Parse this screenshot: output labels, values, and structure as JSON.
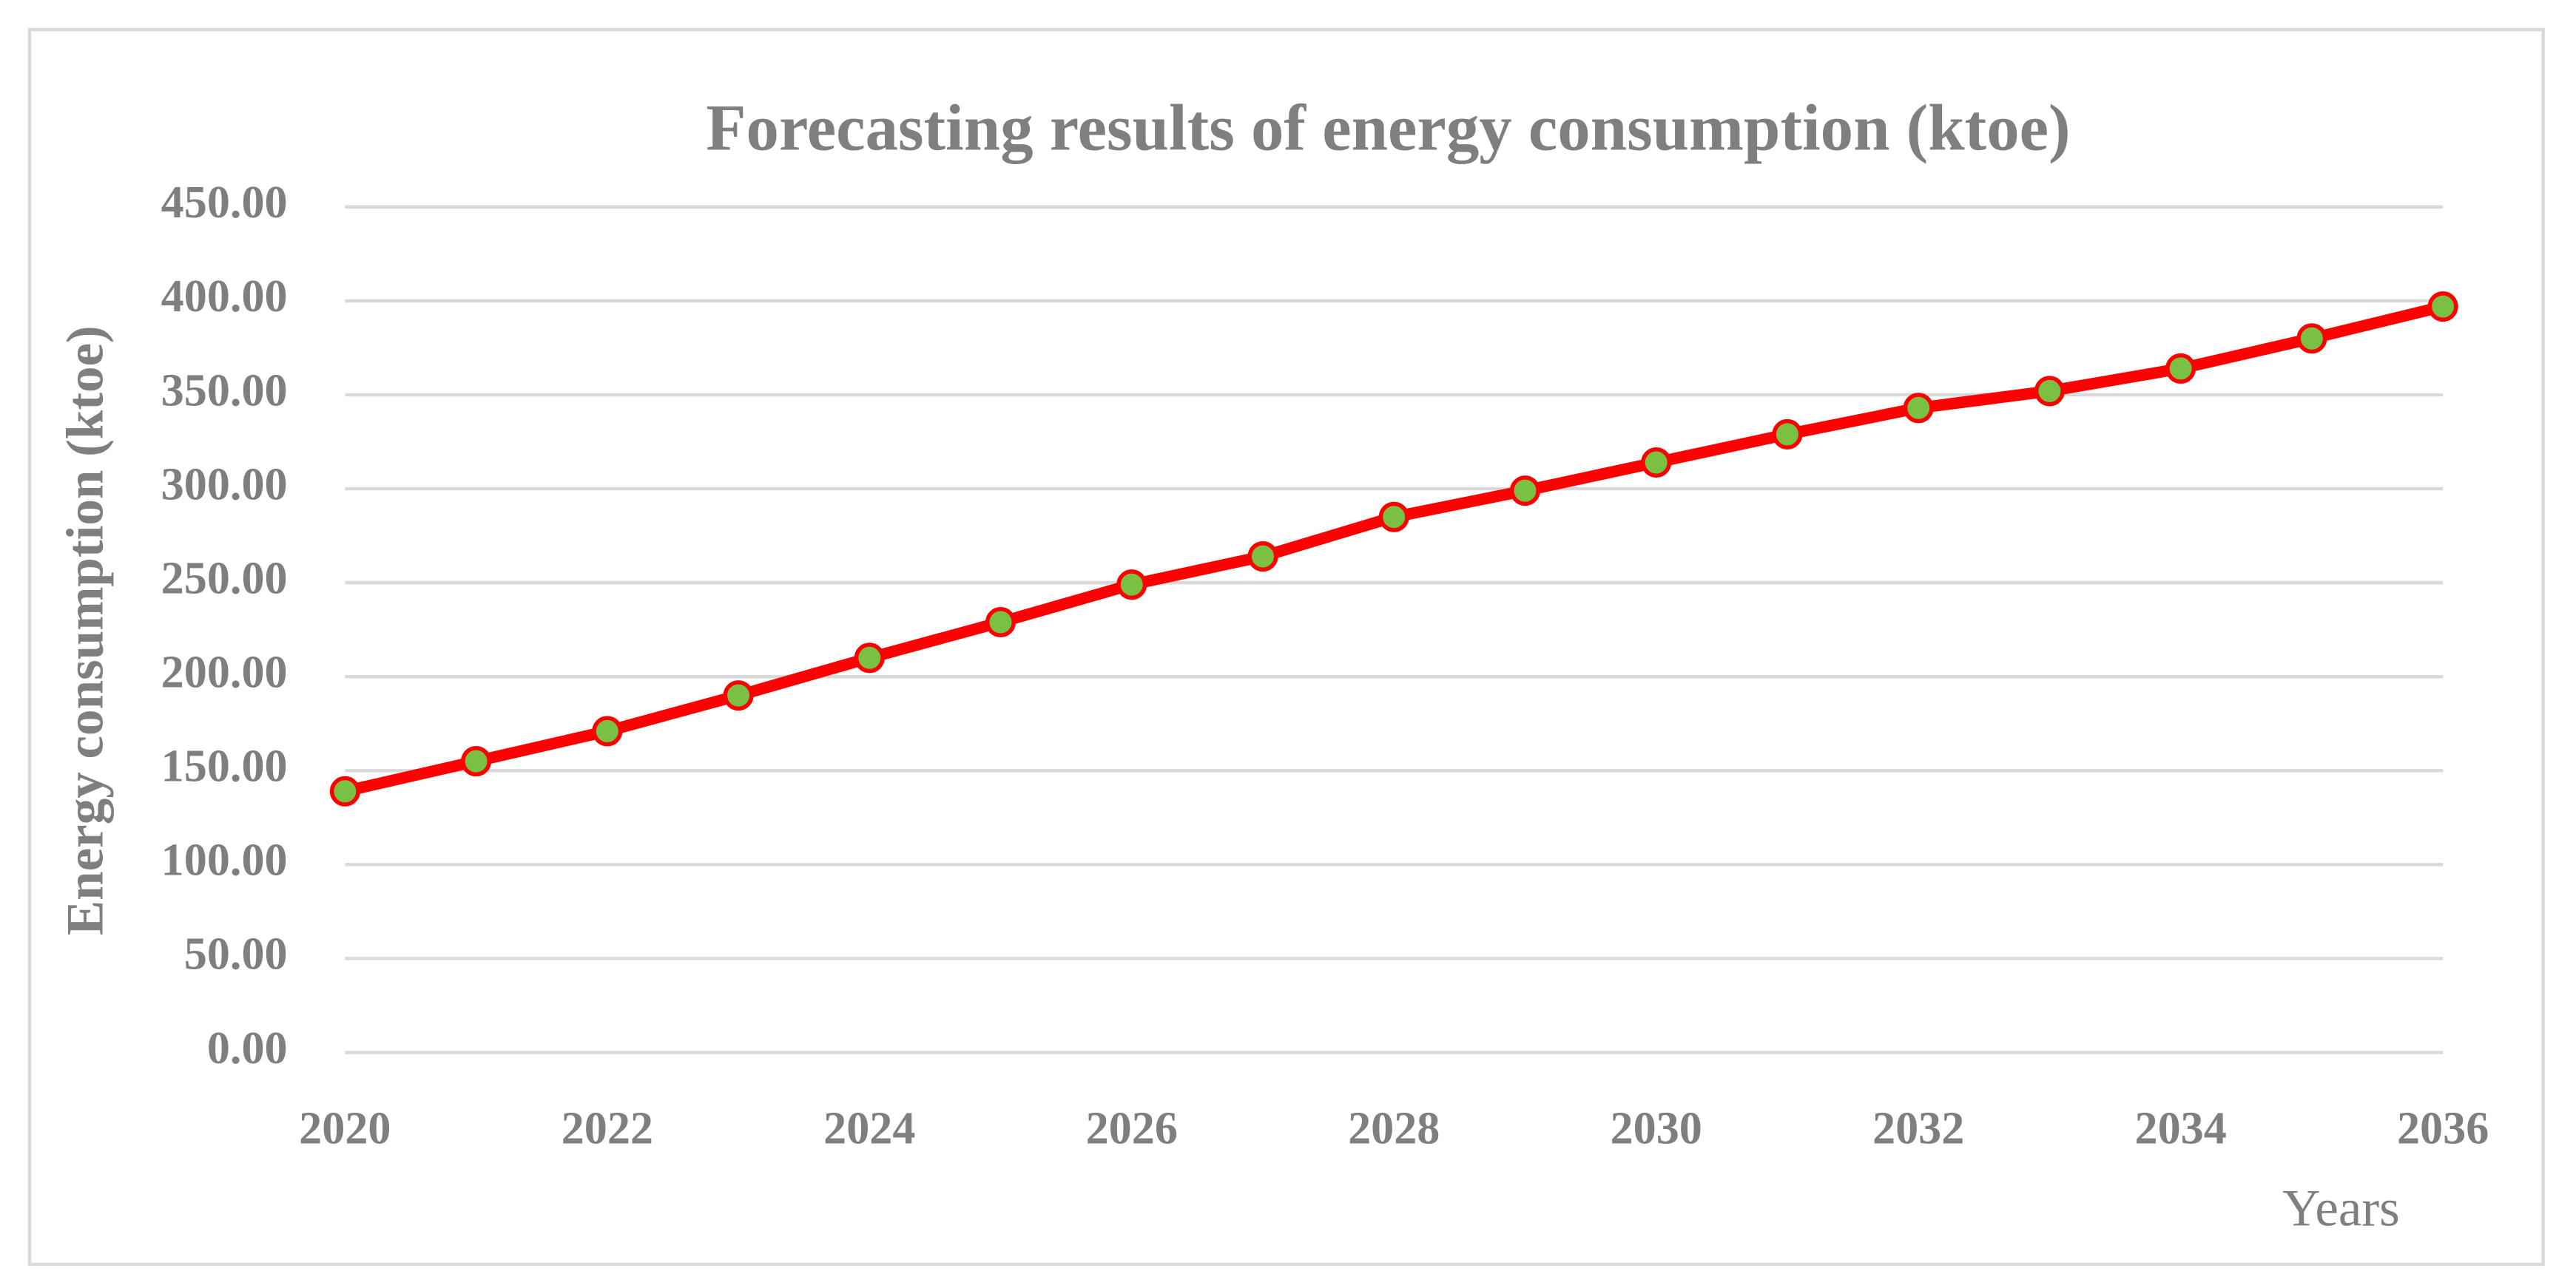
{
  "chart_data": {
    "type": "line",
    "title": "Forecasting results of energy consumption (ktoe)",
    "x_label": "Years",
    "y_label": "Energy consumption (ktoe)",
    "x": [
      2020,
      2021,
      2022,
      2023,
      2024,
      2025,
      2026,
      2027,
      2028,
      2029,
      2030,
      2031,
      2032,
      2033,
      2034,
      2035,
      2036
    ],
    "values": [
      139,
      155,
      171,
      190,
      210,
      229,
      249,
      264,
      285,
      299,
      314,
      329,
      343,
      352,
      364,
      380,
      397
    ],
    "color": "#ff0000",
    "marker_color": "#7ac143",
    "xlim": [
      2020,
      2036
    ],
    "xticks": [
      2020,
      2022,
      2024,
      2026,
      2028,
      2030,
      2032,
      2034,
      2036
    ],
    "ylim": [
      0,
      450
    ],
    "yticks": [
      {
        "value": 0,
        "label": "0.00"
      },
      {
        "value": 50,
        "label": "50.00"
      },
      {
        "value": 100,
        "label": "100.00"
      },
      {
        "value": 150,
        "label": "150.00"
      },
      {
        "value": 200,
        "label": "200.00"
      },
      {
        "value": 250,
        "label": "250.00"
      },
      {
        "value": 300,
        "label": "300.00"
      },
      {
        "value": 350,
        "label": "350.00"
      },
      {
        "value": 400,
        "label": "400.00"
      },
      {
        "value": 450,
        "label": "450.00"
      }
    ],
    "grid": true
  }
}
